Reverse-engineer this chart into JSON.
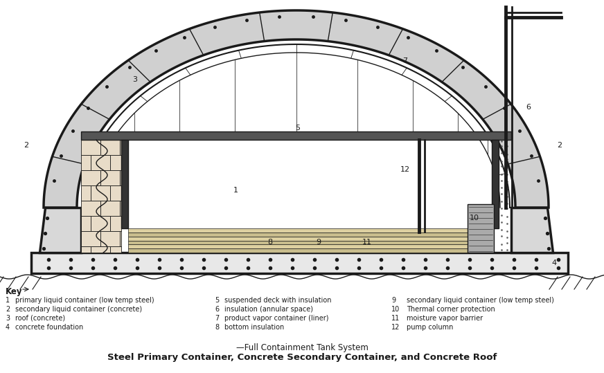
{
  "bg_color": "#ffffff",
  "line_color": "#1a1a1a",
  "title1": "—Full Containment Tank System",
  "title2": "Steel Primary Container, Concrete Secondary Container, and Concrete Roof",
  "key_title": "Key",
  "key_col1": [
    [
      "1",
      "primary liquid container (low temp steel)"
    ],
    [
      "2",
      "secondary liquid container (concrete)"
    ],
    [
      "3",
      "roof (concrete)"
    ],
    [
      "4",
      "concrete foundation"
    ]
  ],
  "key_col2": [
    [
      "5",
      "suspended deck with insulation"
    ],
    [
      "6",
      "insulation (annular space)"
    ],
    [
      "7",
      "product vapor container (liner)"
    ],
    [
      "8",
      "bottom insulation"
    ]
  ],
  "key_col3": [
    [
      "9",
      "secondary liquid container (low temp steel)"
    ],
    [
      "10",
      "Thermal corner protection"
    ],
    [
      "11",
      "moisture vapor barrier"
    ],
    [
      "12",
      "pump column"
    ]
  ]
}
